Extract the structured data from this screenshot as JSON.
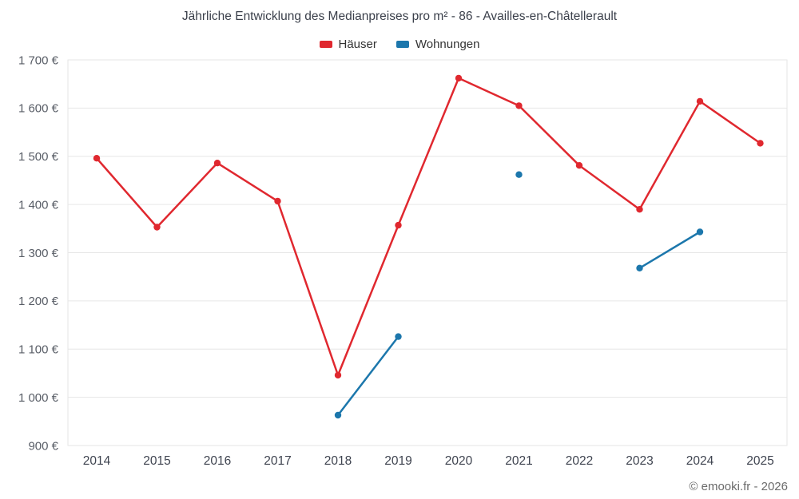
{
  "chart_data": {
    "type": "line",
    "title": "Jährliche Entwicklung des Medianpreises pro m² - 86 - Availles-en-Châtellerault",
    "categories": [
      "2014",
      "2015",
      "2016",
      "2017",
      "2018",
      "2019",
      "2020",
      "2021",
      "2022",
      "2023",
      "2024",
      "2025"
    ],
    "series": [
      {
        "name": "Häuser",
        "color": "#e0282f",
        "values": [
          1496,
          1353,
          1486,
          1407,
          1046,
          1357,
          1662,
          1605,
          1481,
          1390,
          1614,
          1527
        ]
      },
      {
        "name": "Wohnungen",
        "color": "#1c77ac",
        "values": [
          null,
          null,
          null,
          null,
          963,
          1126,
          null,
          1462,
          null,
          1268,
          1343,
          null
        ]
      }
    ],
    "ylim": [
      900,
      1700
    ],
    "ytick_labels": [
      "900 €",
      "1 000 €",
      "1 100 €",
      "1 200 €",
      "1 300 €",
      "1 400 €",
      "1 500 €",
      "1 600 €",
      "1 700 €"
    ],
    "ytick_step": 100,
    "grid": "horizontal",
    "legend_position": "top",
    "marker": "circle"
  },
  "footer": {
    "credit": "© emooki.fr - 2026"
  }
}
